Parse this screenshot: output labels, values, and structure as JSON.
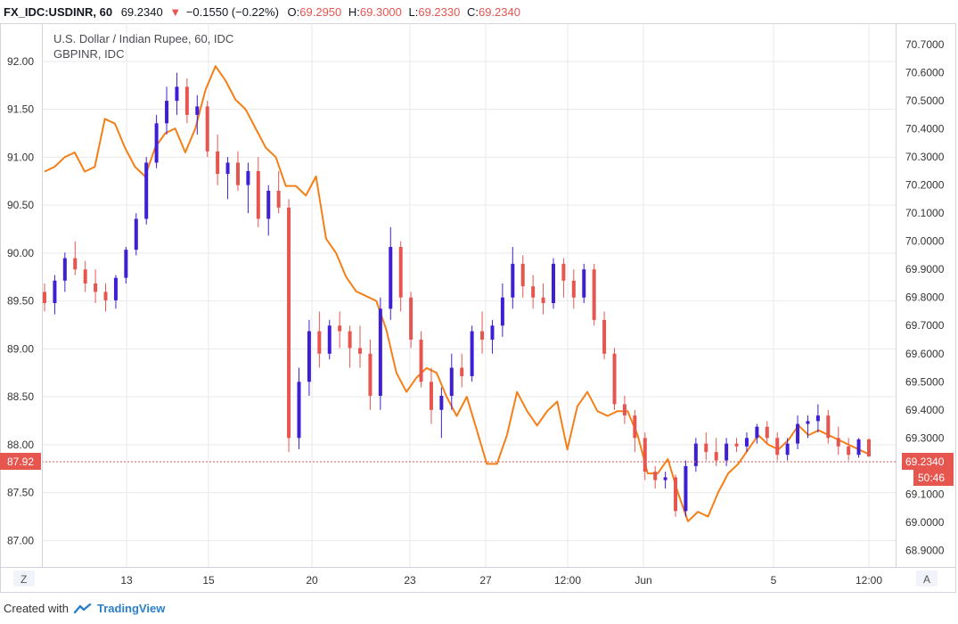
{
  "header": {
    "symbol": "FX_IDC:USDINR, 60",
    "last": "69.2340",
    "change": "−0.1550 (−0.22%)",
    "o_label": "O:",
    "o_val": "69.2950",
    "h_label": "H:",
    "h_val": "69.3000",
    "l_label": "L:",
    "l_val": "69.2330",
    "c_label": "C:",
    "c_val": "69.2340"
  },
  "legend": {
    "main": "U.S. Dollar / Indian Rupee, 60, IDC",
    "compare": "GBPINR, IDC"
  },
  "buttons": {
    "left": "Z",
    "right": "A"
  },
  "price_tags": {
    "left_value": "87.92",
    "right_value": "69.2340",
    "countdown": "50:46"
  },
  "footer": {
    "created_with": "Created with",
    "brand": "TradingView"
  },
  "colors": {
    "up": "#3f1fd6",
    "down": "#e7554f",
    "compare": "#f57f17",
    "grid": "#e9e9ee",
    "border": "#c7c7cc",
    "price_line": "#e7554f"
  },
  "chart_data": {
    "type": "line",
    "x_ticks": [
      "13",
      "15",
      "20",
      "23",
      "27",
      "12:00",
      "Jun",
      "5",
      "12:00"
    ],
    "y_left_ticks": [
      "92.00",
      "91.50",
      "91.00",
      "90.50",
      "90.00",
      "89.50",
      "89.00",
      "88.50",
      "88.00",
      "87.50",
      "87.00"
    ],
    "y_left_range": [
      86.78,
      92.38
    ],
    "y_right_ticks": [
      "70.7000",
      "70.6000",
      "70.5000",
      "70.4000",
      "70.3000",
      "70.2000",
      "70.1000",
      "70.0000",
      "69.9000",
      "69.8000",
      "69.7000",
      "69.6000",
      "69.5000",
      "69.4000",
      "69.3000",
      "69.2000",
      "69.1000",
      "69.0000",
      "68.9000"
    ],
    "y_right_range": [
      68.86,
      70.77
    ],
    "series": [
      {
        "name": "GBPINR",
        "axis": "left",
        "style": "line",
        "values": [
          90.85,
          90.9,
          91.0,
          91.05,
          90.85,
          90.9,
          91.4,
          91.35,
          91.1,
          90.9,
          90.8,
          91.1,
          91.25,
          91.3,
          91.05,
          91.3,
          91.7,
          91.95,
          91.8,
          91.6,
          91.5,
          91.3,
          91.1,
          91.0,
          90.7,
          90.7,
          90.6,
          90.8,
          90.15,
          90.0,
          89.75,
          89.6,
          89.55,
          89.5,
          89.2,
          88.75,
          88.55,
          88.7,
          88.8,
          88.75,
          88.5,
          88.3,
          88.5,
          88.15,
          87.8,
          87.8,
          88.1,
          88.55,
          88.35,
          88.2,
          88.35,
          88.45,
          87.95,
          88.4,
          88.55,
          88.35,
          88.3,
          88.35,
          88.35,
          88.1,
          87.7,
          87.7,
          87.85,
          87.5,
          87.2,
          87.3,
          87.25,
          87.5,
          87.7,
          87.8,
          87.95,
          88.1,
          88.0,
          87.95,
          88.05,
          88.2,
          88.1,
          88.15,
          88.1,
          88.05,
          88.0,
          87.95,
          87.9
        ]
      },
      {
        "name": "USDINR",
        "axis": "right",
        "style": "candles",
        "ohlc": [
          [
            69.82,
            69.85,
            69.75,
            69.78
          ],
          [
            69.78,
            69.88,
            69.74,
            69.86
          ],
          [
            69.86,
            69.96,
            69.82,
            69.94
          ],
          [
            69.94,
            70.0,
            69.88,
            69.9
          ],
          [
            69.9,
            69.93,
            69.82,
            69.85
          ],
          [
            69.85,
            69.9,
            69.78,
            69.82
          ],
          [
            69.82,
            69.85,
            69.75,
            69.79
          ],
          [
            69.79,
            69.88,
            69.76,
            69.87
          ],
          [
            69.87,
            69.98,
            69.85,
            69.97
          ],
          [
            69.97,
            70.1,
            69.95,
            70.08
          ],
          [
            70.08,
            70.3,
            70.06,
            70.28
          ],
          [
            70.28,
            70.45,
            70.26,
            70.42
          ],
          [
            70.42,
            70.55,
            70.38,
            70.5
          ],
          [
            70.5,
            70.6,
            70.45,
            70.55
          ],
          [
            70.55,
            70.58,
            70.42,
            70.45
          ],
          [
            70.45,
            70.52,
            70.38,
            70.48
          ],
          [
            70.48,
            70.5,
            70.3,
            70.32
          ],
          [
            70.32,
            70.38,
            70.2,
            70.24
          ],
          [
            70.24,
            70.3,
            70.15,
            70.28
          ],
          [
            70.28,
            70.32,
            70.18,
            70.2
          ],
          [
            70.2,
            70.28,
            70.1,
            70.25
          ],
          [
            70.25,
            70.3,
            70.05,
            70.08
          ],
          [
            70.08,
            70.2,
            70.02,
            70.18
          ],
          [
            70.18,
            70.25,
            70.1,
            70.12
          ],
          [
            70.12,
            70.15,
            69.25,
            69.3
          ],
          [
            69.3,
            69.55,
            69.26,
            69.5
          ],
          [
            69.5,
            69.72,
            69.45,
            69.68
          ],
          [
            69.68,
            69.75,
            69.55,
            69.6
          ],
          [
            69.6,
            69.72,
            69.58,
            69.7
          ],
          [
            69.7,
            69.75,
            69.62,
            69.68
          ],
          [
            69.68,
            69.7,
            69.55,
            69.62
          ],
          [
            69.62,
            69.7,
            69.55,
            69.6
          ],
          [
            69.6,
            69.65,
            69.4,
            69.45
          ],
          [
            69.45,
            69.8,
            69.4,
            69.76
          ],
          [
            69.76,
            70.05,
            69.72,
            69.98
          ],
          [
            69.98,
            70.0,
            69.75,
            69.8
          ],
          [
            69.8,
            69.82,
            69.62,
            69.65
          ],
          [
            69.65,
            69.68,
            69.48,
            69.5
          ],
          [
            69.5,
            69.55,
            69.35,
            69.4
          ],
          [
            69.4,
            69.48,
            69.3,
            69.45
          ],
          [
            69.45,
            69.6,
            69.4,
            69.55
          ],
          [
            69.55,
            69.6,
            69.48,
            69.52
          ],
          [
            69.52,
            69.7,
            69.5,
            69.68
          ],
          [
            69.68,
            69.75,
            69.6,
            69.65
          ],
          [
            69.65,
            69.72,
            69.6,
            69.7
          ],
          [
            69.7,
            69.85,
            69.66,
            69.8
          ],
          [
            69.8,
            69.98,
            69.76,
            69.92
          ],
          [
            69.92,
            69.95,
            69.8,
            69.84
          ],
          [
            69.84,
            69.88,
            69.76,
            69.8
          ],
          [
            69.8,
            69.85,
            69.74,
            69.78
          ],
          [
            69.78,
            69.94,
            69.76,
            69.92
          ],
          [
            69.92,
            69.94,
            69.8,
            69.86
          ],
          [
            69.86,
            69.9,
            69.76,
            69.8
          ],
          [
            69.8,
            69.92,
            69.78,
            69.9
          ],
          [
            69.9,
            69.92,
            69.7,
            69.72
          ],
          [
            69.72,
            69.75,
            69.58,
            69.6
          ],
          [
            69.6,
            69.62,
            69.4,
            69.42
          ],
          [
            69.42,
            69.45,
            69.35,
            69.38
          ],
          [
            69.38,
            69.4,
            69.25,
            69.3
          ],
          [
            69.3,
            69.32,
            69.15,
            69.18
          ],
          [
            69.18,
            69.2,
            69.12,
            69.15
          ],
          [
            69.15,
            69.18,
            69.12,
            69.16
          ],
          [
            69.16,
            69.17,
            69.02,
            69.04
          ],
          [
            69.04,
            69.22,
            69.02,
            69.2
          ],
          [
            69.2,
            69.3,
            69.18,
            69.28
          ],
          [
            69.28,
            69.32,
            69.22,
            69.25
          ],
          [
            69.25,
            69.3,
            69.2,
            69.22
          ],
          [
            69.22,
            69.3,
            69.2,
            69.28
          ],
          [
            69.28,
            69.3,
            69.25,
            69.27
          ],
          [
            69.27,
            69.32,
            69.25,
            69.3
          ],
          [
            69.3,
            69.35,
            69.28,
            69.34
          ],
          [
            69.34,
            69.36,
            69.28,
            69.3
          ],
          [
            69.3,
            69.32,
            69.22,
            69.24
          ],
          [
            69.24,
            69.3,
            69.22,
            69.28
          ],
          [
            69.28,
            69.38,
            69.26,
            69.35
          ],
          [
            69.35,
            69.38,
            69.3,
            69.36
          ],
          [
            69.36,
            69.42,
            69.32,
            69.38
          ],
          [
            69.38,
            69.4,
            69.28,
            69.3
          ],
          [
            69.3,
            69.34,
            69.24,
            69.27
          ],
          [
            69.27,
            69.3,
            69.22,
            69.24
          ],
          [
            69.24,
            69.3,
            69.23,
            69.295
          ],
          [
            69.295,
            69.3,
            69.233,
            69.234
          ]
        ]
      }
    ],
    "title": "U.S. Dollar / Indian Rupee, 60, IDC",
    "grid": true,
    "legend_position": "top-left"
  }
}
